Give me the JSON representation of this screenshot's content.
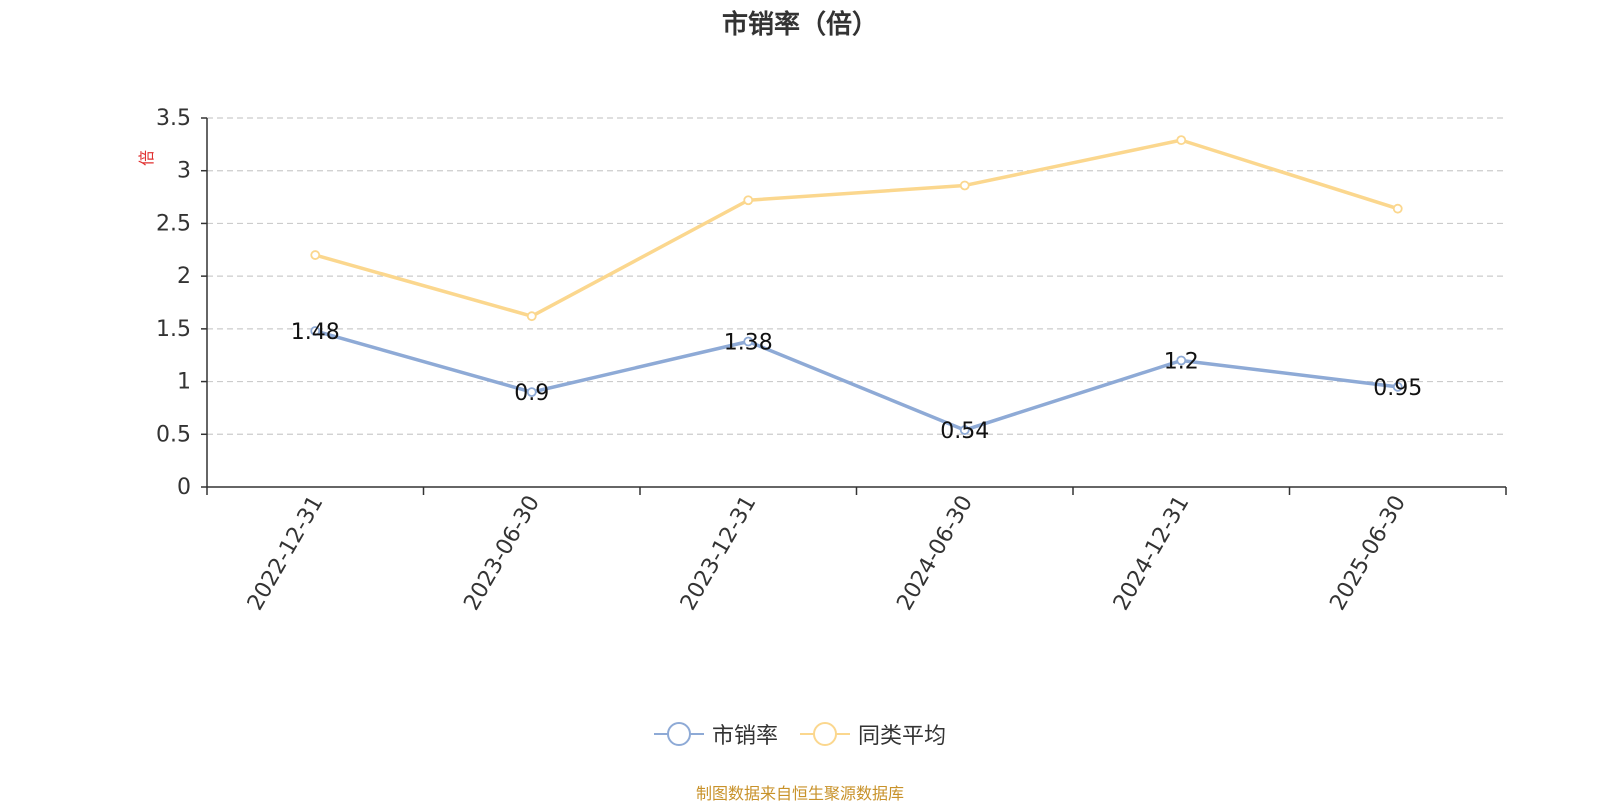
{
  "chart_data": {
    "type": "line",
    "title": "市销率（倍）",
    "ylabel": "倍",
    "categories": [
      "2022-12-31",
      "2023-06-30",
      "2023-12-31",
      "2024-06-30",
      "2024-12-31",
      "2025-06-30"
    ],
    "ylim": [
      0,
      3.5
    ],
    "yticks": [
      0,
      0.5,
      1,
      1.5,
      2,
      2.5,
      3,
      3.5
    ],
    "grid": true,
    "legend_position": "bottom",
    "series": [
      {
        "name": "市销率",
        "values": [
          1.48,
          0.9,
          1.38,
          0.54,
          1.2,
          0.95
        ],
        "color": "#8eaad6",
        "show_labels": true
      },
      {
        "name": "同类平均",
        "values": [
          2.2,
          1.62,
          2.72,
          2.86,
          3.29,
          2.64
        ],
        "color": "#fbd78e",
        "show_labels": false
      }
    ]
  },
  "footer": "制图数据来自恒生聚源数据库"
}
